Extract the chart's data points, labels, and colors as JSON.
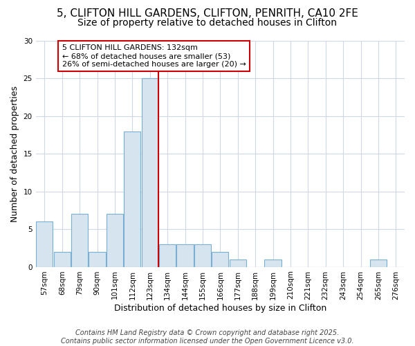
{
  "title1": "5, CLIFTON HILL GARDENS, CLIFTON, PENRITH, CA10 2FE",
  "title2": "Size of property relative to detached houses in Clifton",
  "xlabel": "Distribution of detached houses by size in Clifton",
  "ylabel": "Number of detached properties",
  "categories": [
    "57sqm",
    "68sqm",
    "79sqm",
    "90sqm",
    "101sqm",
    "112sqm",
    "123sqm",
    "134sqm",
    "144sqm",
    "155sqm",
    "166sqm",
    "177sqm",
    "188sqm",
    "199sqm",
    "210sqm",
    "221sqm",
    "232sqm",
    "243sqm",
    "254sqm",
    "265sqm",
    "276sqm"
  ],
  "values": [
    6,
    2,
    7,
    2,
    7,
    18,
    25,
    3,
    3,
    3,
    2,
    1,
    0,
    1,
    0,
    0,
    0,
    0,
    0,
    1,
    0
  ],
  "bar_color": "#d6e4f0",
  "bar_edge_color": "#7aafd4",
  "vline_x_idx": 6.5,
  "vline_color": "#cc0000",
  "annotation_text": "5 CLIFTON HILL GARDENS: 132sqm\n← 68% of detached houses are smaller (53)\n26% of semi-detached houses are larger (20) →",
  "annotation_box_facecolor": "#ffffff",
  "annotation_box_edgecolor": "#cc0000",
  "ylim": [
    0,
    30
  ],
  "yticks": [
    0,
    5,
    10,
    15,
    20,
    25,
    30
  ],
  "footer1": "Contains HM Land Registry data © Crown copyright and database right 2025.",
  "footer2": "Contains public sector information licensed under the Open Government Licence v3.0.",
  "bg_color": "#ffffff",
  "grid_color": "#d0d8e8",
  "title1_fontsize": 11,
  "title2_fontsize": 10,
  "xlabel_fontsize": 9,
  "ylabel_fontsize": 9,
  "tick_fontsize": 7.5,
  "annot_fontsize": 8,
  "footer_fontsize": 7
}
